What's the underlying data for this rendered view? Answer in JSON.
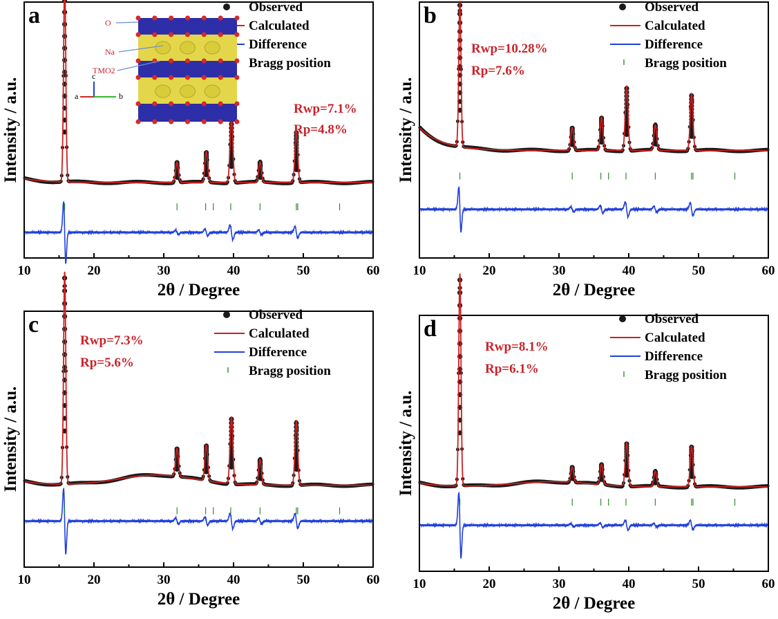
{
  "colors": {
    "observed": "#1a1a1a",
    "calculated": "#cc1f1f",
    "difference": "#1f3fdb",
    "bragg": "#2e8b2e",
    "stats": "#c8242b",
    "inset_label": "#c8242b",
    "inset_yellow": "#e3d64a",
    "inset_blue": "#2e2ea8"
  },
  "chart_data": [
    {
      "type": "scatter",
      "panel_label": "a",
      "xlabel": "2θ / Degree",
      "ylabel": "Intensity / a.u.",
      "xlim": [
        10,
        60
      ],
      "ylim": [
        0,
        100
      ],
      "xticks": [
        10,
        20,
        30,
        40,
        50,
        60
      ],
      "xtick_labels": [
        "10",
        "20",
        "30",
        "40",
        "50",
        "60"
      ],
      "legend": {
        "position": "top-right",
        "entries": [
          "Observed",
          "Calculated",
          "Difference",
          "Bragg position"
        ]
      },
      "stats": [
        "Rwp=7.1%",
        "Rp=4.8%"
      ],
      "baseline": 29.5,
      "background_hump": 0,
      "peaks": [
        {
          "x": 15.8,
          "height": 78,
          "width": 0.16
        },
        {
          "x": 31.9,
          "height": 8,
          "width": 0.2
        },
        {
          "x": 36.1,
          "height": 12,
          "width": 0.2
        },
        {
          "x": 39.7,
          "height": 25,
          "width": 0.2
        },
        {
          "x": 43.8,
          "height": 8,
          "width": 0.2
        },
        {
          "x": 49.0,
          "height": 20,
          "width": 0.2
        }
      ],
      "bragg_positions": [
        15.8,
        31.9,
        36.0,
        37.1,
        39.6,
        43.8,
        49.0,
        49.2,
        55.2
      ],
      "bragg_level": 20,
      "difference_level": 10,
      "inset": {
        "labels": [
          "O",
          "Na",
          "TMO2"
        ],
        "axes_labels": [
          "a",
          "b",
          "c"
        ]
      }
    },
    {
      "type": "scatter",
      "panel_label": "b",
      "xlabel": "2θ / Degree",
      "ylabel": "Intensity / a.u.",
      "xlim": [
        10,
        60
      ],
      "ylim": [
        0,
        100
      ],
      "xticks": [
        10,
        20,
        30,
        40,
        50,
        60
      ],
      "xtick_labels": [
        "10",
        "20",
        "30",
        "40",
        "50",
        "60"
      ],
      "legend": {
        "position": "top-right",
        "entries": [
          "Observed",
          "Calculated",
          "Difference",
          "Bragg position"
        ]
      },
      "stats": [
        "Rwp=10.28%",
        "Rp=7.6%"
      ],
      "baseline": 42,
      "background_hump": 0,
      "peaks": [
        {
          "x": 15.8,
          "height": 57,
          "width": 0.16
        },
        {
          "x": 31.9,
          "height": 9,
          "width": 0.2
        },
        {
          "x": 36.1,
          "height": 13,
          "width": 0.2
        },
        {
          "x": 39.7,
          "height": 25,
          "width": 0.2
        },
        {
          "x": 43.8,
          "height": 10,
          "width": 0.2
        },
        {
          "x": 49.0,
          "height": 22,
          "width": 0.2
        }
      ],
      "bragg_positions": [
        15.8,
        31.9,
        36.0,
        37.1,
        39.6,
        43.8,
        49.0,
        49.2,
        55.2
      ],
      "bragg_level": 32,
      "difference_level": 19
    },
    {
      "type": "scatter",
      "panel_label": "c",
      "xlabel": "2θ / Degree",
      "ylabel": "Intensity / a.u.",
      "xlim": [
        10,
        60
      ],
      "ylim": [
        0,
        100
      ],
      "xticks": [
        10,
        20,
        30,
        40,
        50,
        60
      ],
      "xtick_labels": [
        "10",
        "20",
        "30",
        "40",
        "50",
        "60"
      ],
      "legend": {
        "position": "top-right",
        "entries": [
          "Observed",
          "Calculated",
          "Difference",
          "Bragg position"
        ]
      },
      "stats": [
        "Rwp=7.3%",
        "Rp=5.6%"
      ],
      "baseline": 32,
      "background_hump": 4,
      "peaks": [
        {
          "x": 15.8,
          "height": 83,
          "width": 0.16
        },
        {
          "x": 31.9,
          "height": 11,
          "width": 0.2
        },
        {
          "x": 36.1,
          "height": 14,
          "width": 0.2
        },
        {
          "x": 39.7,
          "height": 26,
          "width": 0.2
        },
        {
          "x": 43.8,
          "height": 10,
          "width": 0.2
        },
        {
          "x": 49.0,
          "height": 25,
          "width": 0.2
        }
      ],
      "bragg_positions": [
        15.8,
        31.9,
        36.0,
        37.1,
        39.6,
        43.8,
        49.0,
        49.2,
        55.2
      ],
      "bragg_level": 22,
      "difference_level": 18
    },
    {
      "type": "scatter",
      "panel_label": "d",
      "xlabel": "2θ / Degree",
      "ylabel": "Intensity / a.u.",
      "xlim": [
        10,
        60
      ],
      "ylim": [
        0,
        100
      ],
      "xticks": [
        10,
        20,
        30,
        40,
        50,
        60
      ],
      "xtick_labels": [
        "10",
        "20",
        "30",
        "40",
        "50",
        "60"
      ],
      "legend": {
        "position": "top-right",
        "entries": [
          "Observed",
          "Calculated",
          "Difference",
          "Bragg position"
        ]
      },
      "stats": [
        "Rwp=8.1%",
        "Rp=6.1%"
      ],
      "baseline": 33,
      "background_hump": 2,
      "peaks": [
        {
          "x": 15.8,
          "height": 83,
          "width": 0.16
        },
        {
          "x": 31.9,
          "height": 6,
          "width": 0.2
        },
        {
          "x": 36.1,
          "height": 8,
          "width": 0.2
        },
        {
          "x": 39.7,
          "height": 17,
          "width": 0.2
        },
        {
          "x": 43.8,
          "height": 6,
          "width": 0.2
        },
        {
          "x": 49.0,
          "height": 16,
          "width": 0.2
        }
      ],
      "bragg_positions": [
        15.8,
        31.9,
        36.0,
        37.1,
        39.6,
        43.8,
        49.0,
        49.2,
        55.2
      ],
      "bragg_level": 27,
      "difference_level": 18
    }
  ]
}
